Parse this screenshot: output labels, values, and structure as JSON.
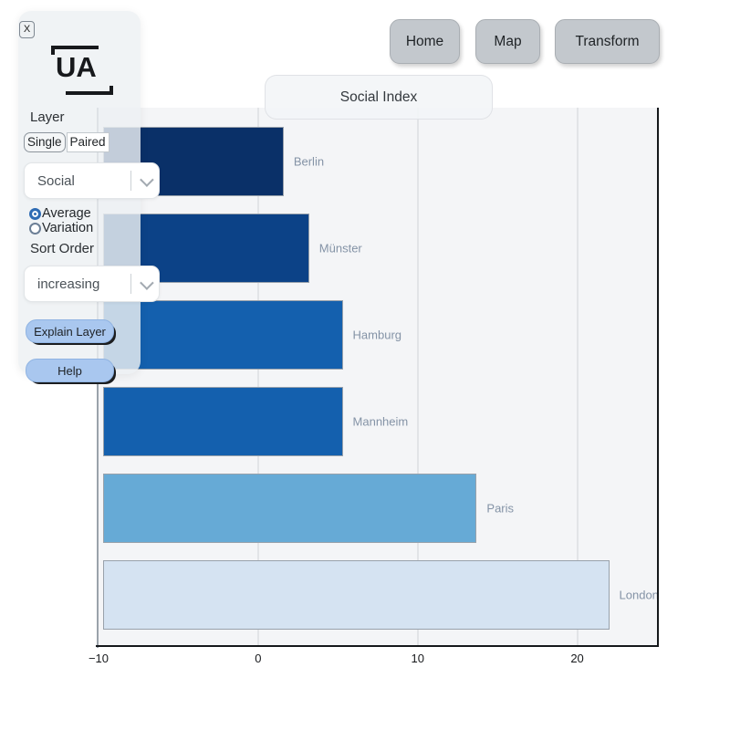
{
  "close_button": {
    "label": "X"
  },
  "logo": {
    "text": "UA"
  },
  "panel": {
    "layer_label": "Layer",
    "segmented": {
      "options": [
        "Single",
        "Paired"
      ],
      "selected": "Single"
    },
    "layer_select": {
      "value": "Social"
    },
    "radio_group": {
      "options": [
        "Average",
        "Variation"
      ],
      "selected": "Average"
    },
    "sort_label": "Sort Order",
    "sort_select": {
      "value": "increasing"
    },
    "explain_button_label": "Explain Layer",
    "help_button_label": "Help"
  },
  "nav": {
    "buttons": [
      "Home",
      "Map",
      "Transform"
    ]
  },
  "chart_data": {
    "type": "bar",
    "orientation": "horizontal",
    "title": "Social Index",
    "categories": [
      "Berlin",
      "Münster",
      "Hamburg",
      "Mannheim",
      "Paris",
      "London"
    ],
    "values": [
      1.6,
      3.2,
      5.3,
      5.3,
      13.7,
      22.0
    ],
    "bar_start": -9.7,
    "bar_colors": [
      "#0a3068",
      "#0c4287",
      "#1460ae",
      "#1460ae",
      "#66aad6",
      "#d5e3f2"
    ],
    "xlim": [
      -10,
      25
    ],
    "ticks": [
      {
        "value": -10,
        "label": "−10"
      },
      {
        "value": 0,
        "label": "0"
      },
      {
        "value": 10,
        "label": "10"
      },
      {
        "value": 20,
        "label": "20"
      }
    ],
    "grid": true,
    "legend": "none",
    "label_color": "#8493a6",
    "sort_order": "increasing"
  }
}
